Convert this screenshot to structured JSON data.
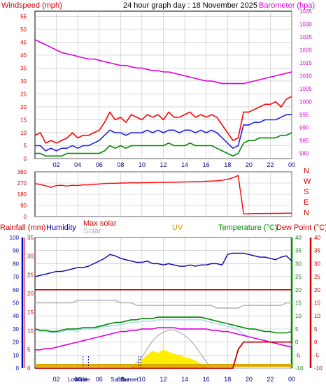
{
  "title": "24 hour graph day : 18 November 2025",
  "colors": {
    "wind": "#ff0000",
    "gust_avg": "#2222dd",
    "wind_green": "#008800",
    "baro": "#dd00dd",
    "rain": "#cc0000",
    "humidity": "#0000aa",
    "solar": "#b0b0b0",
    "uv": "#dd9900",
    "temperature": "#008800",
    "dewpoint": "#cc0000",
    "grid": "#c0c0c0",
    "sun": "#ffee00"
  },
  "hours": [
    "02",
    "04",
    "06",
    "08",
    "10",
    "12",
    "14",
    "16",
    "18",
    "20",
    "22",
    "00"
  ],
  "chart_data": [
    {
      "type": "line",
      "name": "wind-barometer",
      "left_label": "Windspeed (mph)",
      "right_label": "Barometer (hpa)",
      "left_ticks": [
        "0",
        "5",
        "10",
        "15",
        "20",
        "25",
        "30",
        "35",
        "40",
        "45",
        "50",
        "55"
      ],
      "right_ticks": [
        "980",
        "985",
        "990",
        "995",
        "1000",
        "1005",
        "1010",
        "1015",
        "1020",
        "1025",
        "1030",
        "1035"
      ],
      "ylim_left": [
        0,
        57
      ],
      "ylim_right": [
        978,
        1035
      ],
      "x_hours": [
        0,
        0.5,
        1,
        1.5,
        2,
        2.5,
        3,
        3.5,
        4,
        4.5,
        5,
        5.5,
        6,
        6.5,
        7,
        7.5,
        8,
        8.5,
        9,
        9.5,
        10,
        10.5,
        11,
        11.5,
        12,
        12.5,
        13,
        13.5,
        14,
        14.5,
        15,
        15.5,
        16,
        16.5,
        17,
        17.5,
        18,
        18.5,
        19,
        19.5,
        20,
        20.5,
        21,
        21.5,
        22,
        22.5,
        23,
        23.5,
        24
      ],
      "series": [
        {
          "key": "barometer",
          "values": [
            1024,
            1023,
            1022,
            1021,
            1020,
            1019,
            1018.5,
            1018,
            1017.5,
            1017,
            1016.5,
            1016.5,
            1016,
            1015.5,
            1015,
            1014.5,
            1014,
            1014,
            1013.5,
            1013,
            1013,
            1012.5,
            1012,
            1012,
            1011.5,
            1011.5,
            1011,
            1010.5,
            1010,
            1009.5,
            1009,
            1008.5,
            1008,
            1008,
            1007.5,
            1007,
            1007,
            1007,
            1007,
            1007,
            1007.5,
            1008,
            1008.5,
            1009,
            1009.5,
            1010,
            1010.5,
            1011,
            1011.5
          ]
        },
        {
          "key": "gust",
          "values": [
            9,
            10,
            6,
            7,
            6,
            7,
            8,
            10,
            8,
            9,
            9,
            10,
            11,
            14,
            18,
            15,
            16,
            14,
            17,
            16,
            15,
            17,
            16,
            17,
            15,
            18,
            16,
            16,
            17,
            18,
            16,
            17,
            16,
            17,
            16,
            13,
            10,
            7,
            8,
            18,
            18,
            19,
            20,
            21,
            21,
            22,
            20,
            23,
            24
          ]
        },
        {
          "key": "average",
          "values": [
            5,
            5,
            3,
            4,
            3,
            4,
            4,
            5,
            4,
            5,
            5,
            6,
            7,
            9,
            11,
            10,
            10,
            9,
            10,
            10,
            10,
            11,
            10,
            11,
            10,
            11,
            11,
            10,
            11,
            11,
            10,
            11,
            10,
            11,
            10,
            8,
            6,
            4,
            5,
            13,
            13,
            14,
            14,
            15,
            15,
            15,
            16,
            17,
            17
          ]
        },
        {
          "key": "low",
          "values": [
            2,
            2,
            1,
            1,
            1,
            1,
            2,
            2,
            2,
            2,
            2,
            2,
            2,
            3,
            5,
            4,
            5,
            4,
            5,
            5,
            5,
            5,
            5,
            5,
            5,
            6,
            5,
            5,
            5,
            6,
            5,
            5,
            5,
            5,
            4,
            3,
            2,
            1,
            2,
            6,
            7,
            7,
            8,
            8,
            8,
            8,
            9,
            9,
            10
          ]
        }
      ]
    },
    {
      "type": "line",
      "name": "wind-direction",
      "left_ticks": [
        "0",
        "90",
        "180",
        "270",
        "360"
      ],
      "right_ticks": [
        "N",
        "W",
        "S",
        "E",
        "N"
      ],
      "ylim": [
        0,
        360
      ],
      "x_hours": [
        0,
        0.5,
        1,
        1.5,
        2,
        2.5,
        3,
        3.5,
        4,
        4.5,
        5,
        5.5,
        6,
        6.5,
        7,
        7.5,
        8,
        8.5,
        9,
        9.5,
        10,
        10.5,
        11,
        11.5,
        12,
        12.5,
        13,
        13.5,
        14,
        14.5,
        15,
        15.5,
        16,
        16.5,
        17,
        17.5,
        18,
        18.5,
        19,
        19.5,
        20,
        20.5,
        21,
        21.5,
        22,
        22.5,
        23,
        23.5,
        24
      ],
      "values": [
        265,
        258,
        248,
        235,
        250,
        252,
        246,
        252,
        250,
        255,
        255,
        258,
        262,
        266,
        268,
        268,
        270,
        270,
        272,
        271,
        272,
        273,
        274,
        275,
        275,
        276,
        277,
        278,
        279,
        280,
        281,
        282,
        284,
        286,
        288,
        292,
        300,
        312,
        330,
        22,
        22,
        24,
        24,
        25,
        25,
        26,
        26,
        27,
        27
      ]
    },
    {
      "type": "line",
      "name": "temperature-humidity",
      "labels": {
        "rain": "Rainfall (mm)",
        "humidity": "Humidity",
        "max_solar": "Max solar",
        "solar": "Solar",
        "uv": "UV",
        "temperature": "Temperature (°C)",
        "dewpoint": "Dew Point (°C)"
      },
      "left_ticks_humidity": [
        "0",
        "10",
        "20",
        "30",
        "40",
        "50",
        "60",
        "70",
        "80",
        "90",
        "100"
      ],
      "left_ticks_rain": [
        "0",
        "5",
        "10",
        "15",
        "20",
        "25",
        "30",
        "35"
      ],
      "right_ticks_temp": [
        "-10",
        "-5",
        "0",
        "5",
        "10",
        "15",
        "20",
        "25",
        "30",
        "35",
        "40"
      ],
      "ylim_humidity": [
        0,
        100
      ],
      "ylim_temp": [
        -10,
        40
      ],
      "ylim_rain": [
        0,
        35
      ],
      "x_hours": [
        0,
        0.5,
        1,
        1.5,
        2,
        2.5,
        3,
        3.5,
        4,
        4.5,
        5,
        5.5,
        6,
        6.5,
        7,
        7.5,
        8,
        8.5,
        9,
        9.5,
        10,
        10.5,
        11,
        11.5,
        12,
        12.5,
        13,
        13.5,
        14,
        14.5,
        15,
        15.5,
        16,
        16.5,
        17,
        17.5,
        18,
        18.5,
        19,
        19.5,
        20,
        20.5,
        21,
        21.5,
        22,
        22.5,
        23,
        23.5,
        24
      ],
      "series": [
        {
          "key": "humidity",
          "values": [
            70,
            71,
            72,
            73,
            74,
            74,
            75,
            76,
            77,
            77,
            78,
            80,
            82,
            84,
            87,
            86,
            84,
            83,
            82,
            81,
            81,
            82,
            80,
            80,
            79,
            80,
            79,
            78,
            78,
            79,
            78,
            79,
            79,
            80,
            80,
            79,
            87,
            88,
            88,
            88,
            87,
            86,
            85,
            85,
            84,
            83,
            85,
            86,
            82
          ]
        },
        {
          "key": "rain_today",
          "values": [
            0,
            0,
            0,
            0,
            0,
            0,
            0,
            0,
            0,
            0,
            0,
            0,
            0,
            0,
            0,
            0,
            0,
            0,
            0,
            0,
            0,
            0,
            0,
            0,
            0,
            0,
            0,
            0,
            0,
            0,
            0,
            0,
            0,
            0,
            0,
            0,
            0,
            0,
            5,
            7,
            7,
            7,
            7,
            7,
            7,
            7,
            7,
            7,
            7
          ]
        },
        {
          "key": "temperature",
          "values": [
            5,
            4.5,
            4.5,
            4,
            4,
            4.5,
            5,
            5,
            5,
            5.5,
            5.5,
            5.5,
            6,
            6.5,
            7,
            7.5,
            7.5,
            8,
            8.5,
            8.5,
            9,
            9,
            9,
            9.5,
            9.5,
            9.5,
            9.5,
            9.5,
            9.5,
            9.5,
            9.5,
            9.5,
            9,
            8.5,
            8,
            7.5,
            7,
            6.5,
            6,
            5.5,
            5,
            5,
            4.5,
            4,
            4,
            3.5,
            3.5,
            3.5,
            4
          ]
        },
        {
          "key": "dewpoint",
          "values": [
            -3,
            -3,
            -2.5,
            -2.5,
            -2,
            -1.5,
            -1,
            -0.5,
            0,
            0.5,
            1,
            1.5,
            2,
            2.5,
            3,
            3.5,
            4,
            4,
            4.5,
            4.5,
            5,
            5,
            5,
            5.5,
            5.5,
            5.5,
            5.5,
            5,
            5,
            5,
            5,
            5,
            5,
            4.5,
            4.5,
            4,
            4,
            3.5,
            3,
            2.5,
            2,
            1.5,
            1,
            0.5,
            0,
            -0.5,
            -1,
            -1.5,
            -2
          ]
        },
        {
          "key": "feels_like",
          "values": [
            5,
            4,
            4,
            3.5,
            3.5,
            4,
            4.5,
            4.5,
            4,
            5,
            5,
            5,
            5.5,
            6,
            6,
            6.5,
            6.5,
            7,
            7.5,
            7.5,
            8,
            8,
            8,
            8.5,
            8.5,
            8.5,
            8.5,
            8.5,
            8.5,
            8.5,
            8.5,
            8.5,
            8,
            7.5,
            7,
            6.5,
            6,
            5.5,
            4.5,
            3,
            2,
            1.5,
            1,
            0.5,
            0,
            -0.5,
            -1,
            -1.5,
            -1
          ]
        },
        {
          "key": "heat_index",
          "values": [
            20,
            20,
            20,
            20,
            20,
            20,
            20,
            20,
            20,
            20,
            20,
            20,
            20,
            20,
            20,
            20,
            20,
            20,
            20,
            20,
            20,
            20,
            20,
            20,
            20,
            20,
            20,
            20,
            20,
            20,
            20,
            20,
            20,
            20,
            20,
            20,
            20,
            20,
            20,
            20,
            20,
            20,
            20,
            20,
            20,
            20,
            20,
            20,
            20
          ]
        },
        {
          "key": "solar_grey",
          "values": [
            15,
            15,
            15,
            15,
            15,
            15,
            15,
            15,
            16,
            16,
            16,
            16,
            16,
            16,
            16,
            16,
            15,
            15,
            15,
            14,
            14,
            14,
            14,
            14,
            14,
            14,
            14,
            14,
            14,
            14,
            14,
            14,
            14,
            14,
            13,
            13,
            13,
            13,
            13,
            14,
            14,
            14,
            14,
            14,
            14,
            14,
            14,
            15,
            15
          ]
        },
        {
          "key": "max_solar",
          "values": [
            0,
            0,
            0,
            0,
            0,
            0,
            0,
            0,
            0,
            0,
            0,
            0,
            0,
            0,
            0,
            0,
            0,
            0,
            0,
            0.5,
            1,
            1.8,
            2.5,
            3,
            3.3,
            3.5,
            3.5,
            3.3,
            3,
            2.6,
            2,
            1.3,
            0.6,
            0,
            0,
            0,
            0,
            0,
            0,
            0,
            0,
            0,
            0,
            0,
            0,
            0,
            0,
            0,
            0
          ]
        },
        {
          "key": "solar",
          "values": [
            0,
            0,
            0,
            0,
            0,
            0,
            0,
            0,
            0,
            0,
            0,
            0,
            0,
            0,
            0,
            0,
            0,
            0,
            0,
            0.3,
            0.8,
            1.2,
            1.6,
            1.4,
            1.7,
            1.5,
            1.3,
            1.2,
            1,
            0.9,
            0.7,
            0.4,
            0.1,
            0,
            0,
            0,
            0,
            0,
            0,
            0,
            0,
            0,
            0,
            0,
            0,
            0,
            0,
            0,
            0
          ]
        }
      ],
      "annotations": [
        "Lowtide",
        "Hitide",
        "Sunrise",
        "Sunset"
      ]
    }
  ]
}
